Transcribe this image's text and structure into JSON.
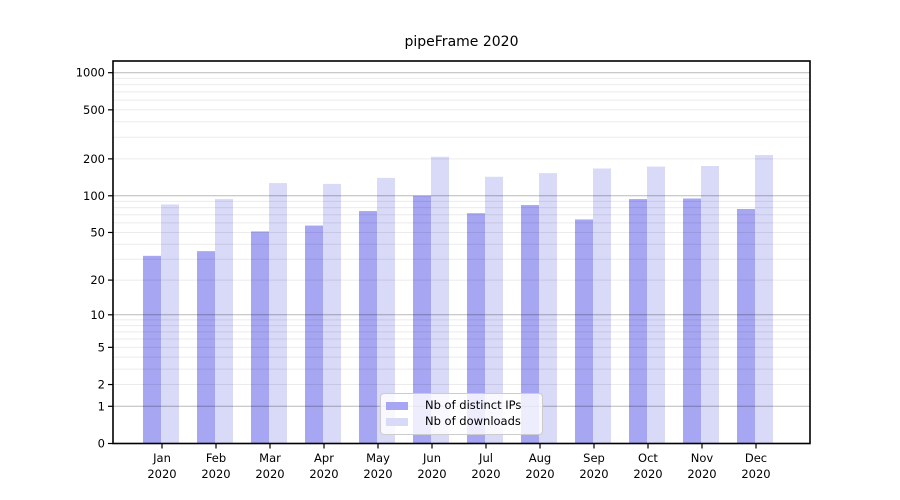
{
  "chart_data": {
    "type": "bar",
    "title": "pipeFrame 2020",
    "xlabel": "",
    "ylabel": "",
    "y_scale": "symlog (log1p)",
    "ylim": [
      0,
      1250
    ],
    "grid": true,
    "legend_position": "lower center",
    "categories": [
      "Jan 2020",
      "Feb 2020",
      "Mar 2020",
      "Apr 2020",
      "May 2020",
      "Jun 2020",
      "Jul 2020",
      "Aug 2020",
      "Sep 2020",
      "Oct 2020",
      "Nov 2020",
      "Dec 2020"
    ],
    "series": [
      {
        "name": "Nb of distinct IPs",
        "color": "#a6a6f2",
        "values": [
          32,
          35,
          51,
          57,
          75,
          100,
          72,
          84,
          64,
          94,
          95,
          78
        ]
      },
      {
        "name": "Nb of downloads",
        "color": "#d9d9f8",
        "values": [
          85,
          94,
          127,
          125,
          140,
          208,
          143,
          153,
          167,
          173,
          175,
          215
        ]
      }
    ],
    "y_tick_labels": [
      "1000",
      "500",
      "200",
      "100",
      "50",
      "20",
      "10",
      "5",
      "2",
      "1",
      "0"
    ]
  },
  "colors": {
    "axis": "#000000",
    "grid_major": "rgba(0,0,0,0.28)",
    "grid_minor": "rgba(0,0,0,0.08)",
    "legend_border": "#cccccc",
    "background": "#ffffff"
  }
}
